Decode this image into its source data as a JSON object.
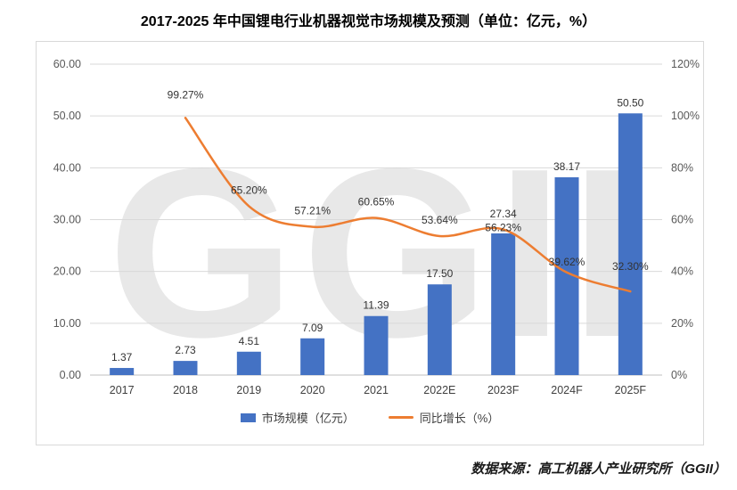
{
  "title": "2017-2025 年中国锂电行业机器视觉市场规模及预测（单位：亿元，%）",
  "source": "数据来源：高工机器人产业研究所（GGII）",
  "watermark": "GGII",
  "colors": {
    "bar": "#4472C4",
    "line": "#ED7D31",
    "grid": "#D9D9D9",
    "axis_line": "#BFBFBF",
    "tick_text": "#595959",
    "category_text": "#404040",
    "label_text": "#333333",
    "watermark": "#E8E8E8"
  },
  "chart_data": {
    "type": "bar+line combo",
    "categories": [
      "2017",
      "2018",
      "2019",
      "2020",
      "2021",
      "2022E",
      "2023F",
      "2024F",
      "2025F"
    ],
    "series": [
      {
        "name": "市场规模（亿元）",
        "type": "bar",
        "axis": "left",
        "values": [
          1.37,
          2.73,
          4.51,
          7.09,
          11.39,
          17.5,
          27.34,
          38.17,
          50.5
        ],
        "labels": [
          "1.37",
          "2.73",
          "4.51",
          "7.09",
          "11.39",
          "17.50",
          "27.34",
          "38.17",
          "50.50"
        ]
      },
      {
        "name": "同比增长（%）",
        "type": "line",
        "axis": "right",
        "values": [
          null,
          99.27,
          65.2,
          57.21,
          60.65,
          53.64,
          56.23,
          39.62,
          32.3
        ],
        "labels": [
          "",
          "99.27%",
          "65.20%",
          "57.21%",
          "60.65%",
          "53.64%",
          "56.23%",
          "39.62%",
          "32.30%"
        ]
      }
    ],
    "left_axis": {
      "min": 0,
      "max": 60,
      "step": 10,
      "ticks": [
        "0.00",
        "10.00",
        "20.00",
        "30.00",
        "40.00",
        "50.00",
        "60.00"
      ]
    },
    "right_axis": {
      "min": 0,
      "max": 120,
      "step": 20,
      "ticks": [
        "0%",
        "20%",
        "40%",
        "60%",
        "80%",
        "100%",
        "120%"
      ]
    },
    "grid": true,
    "legend_position": "bottom"
  }
}
